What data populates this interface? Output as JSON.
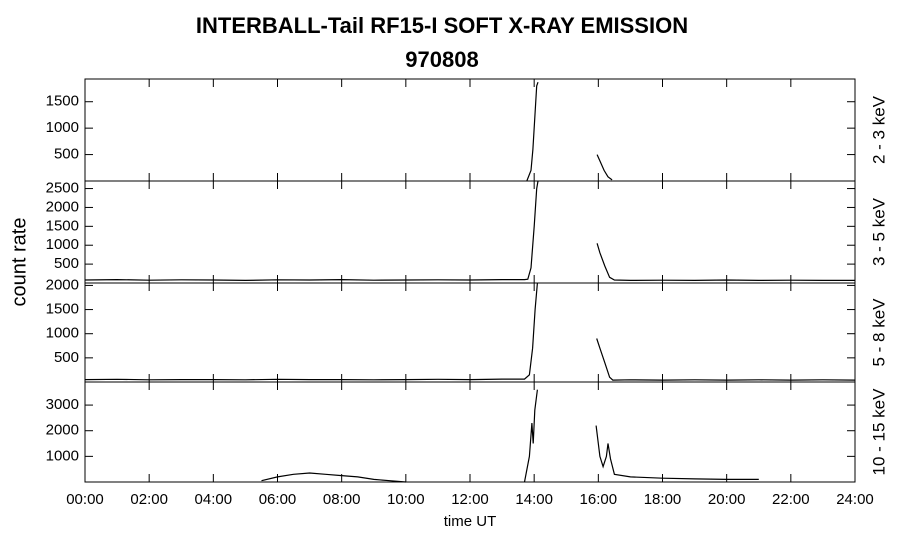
{
  "title": "INTERBALL-Tail RF15-I SOFT X-RAY EMISSION",
  "subtitle": "970808",
  "y_label": "count rate",
  "x_label": "time UT",
  "chart_data": [
    {
      "type": "line",
      "label": "2 - 3 keV",
      "color": "#000000",
      "x": [
        13.77,
        13.9,
        13.96,
        14.02,
        14.08,
        14.12,
        15,
        15.96,
        16.05,
        16.18,
        16.3,
        16.43
      ],
      "values": [
        0,
        200,
        600,
        1200,
        1800,
        1870,
        null,
        500,
        380,
        200,
        80,
        20
      ],
      "xlim": [
        0,
        24
      ],
      "ylim": [
        0,
        1930
      ],
      "yticks": [
        500,
        1000,
        1500
      ]
    },
    {
      "type": "line",
      "label": "3 - 5 keV",
      "color": "#000000",
      "x": [
        0,
        1,
        2,
        3,
        4,
        5,
        6,
        7,
        8,
        9,
        10,
        11,
        12,
        13,
        13.7,
        13.8,
        13.9,
        14.0,
        14.08,
        14.12,
        15,
        15.96,
        16.05,
        16.2,
        16.35,
        16.5,
        17,
        18,
        19,
        20,
        21,
        22,
        23,
        24
      ],
      "values": [
        80,
        90,
        75,
        85,
        80,
        70,
        85,
        80,
        90,
        75,
        80,
        85,
        80,
        90,
        90,
        100,
        400,
        1500,
        2500,
        2700,
        null,
        1050,
        800,
        450,
        150,
        80,
        70,
        75,
        70,
        80,
        70,
        75,
        70,
        70
      ],
      "xlim": [
        0,
        24
      ],
      "ylim": [
        0,
        2700
      ],
      "yticks": [
        500,
        1000,
        1500,
        2000,
        2500
      ]
    },
    {
      "type": "line",
      "label": "5 - 8 keV",
      "color": "#000000",
      "x": [
        0,
        1,
        2,
        3,
        4,
        5,
        6,
        7,
        8,
        9,
        10,
        11,
        12,
        13,
        13.7,
        13.85,
        13.95,
        14.03,
        14.1,
        15,
        15.95,
        16.05,
        16.2,
        16.35,
        16.45,
        17,
        18,
        19,
        20,
        21,
        22,
        23,
        24
      ],
      "values": [
        50,
        55,
        45,
        50,
        50,
        45,
        55,
        50,
        50,
        45,
        50,
        55,
        50,
        60,
        60,
        150,
        700,
        1500,
        2050,
        null,
        900,
        700,
        400,
        100,
        40,
        45,
        40,
        45,
        40,
        45,
        40,
        45,
        40
      ],
      "xlim": [
        0,
        24
      ],
      "ylim": [
        0,
        2050
      ],
      "yticks": [
        500,
        1000,
        1500,
        2000
      ]
    },
    {
      "type": "line",
      "label": "10 - 15 keV",
      "color": "#000000",
      "x": [
        5.5,
        6,
        6.5,
        7,
        7.5,
        8,
        8.5,
        9,
        9.5,
        10,
        12,
        13.7,
        13.85,
        13.93,
        13.97,
        14.02,
        14.1,
        15,
        15.93,
        16.05,
        16.15,
        16.25,
        16.3,
        16.38,
        16.5,
        17,
        18,
        19,
        20,
        21
      ],
      "values": [
        50,
        200,
        300,
        350,
        300,
        250,
        200,
        100,
        50,
        0,
        null,
        0,
        1000,
        2300,
        1500,
        2800,
        3600,
        null,
        2200,
        1000,
        600,
        1000,
        1500,
        900,
        300,
        200,
        150,
        120,
        100,
        100
      ],
      "xlim": [
        0,
        24
      ],
      "ylim": [
        0,
        3900
      ],
      "yticks": [
        1000,
        2000,
        3000
      ],
      "xticks": [
        {
          "value": 0,
          "label": "00:00"
        },
        {
          "value": 2,
          "label": "02:00"
        },
        {
          "value": 4,
          "label": "04:00"
        },
        {
          "value": 6,
          "label": "06:00"
        },
        {
          "value": 8,
          "label": "08:00"
        },
        {
          "value": 10,
          "label": "10:00"
        },
        {
          "value": 12,
          "label": "12:00"
        },
        {
          "value": 14,
          "label": "14:00"
        },
        {
          "value": 16,
          "label": "16:00"
        },
        {
          "value": 18,
          "label": "18:00"
        },
        {
          "value": 20,
          "label": "20:00"
        },
        {
          "value": 22,
          "label": "22:00"
        },
        {
          "value": 24,
          "label": "24:00"
        }
      ]
    }
  ]
}
